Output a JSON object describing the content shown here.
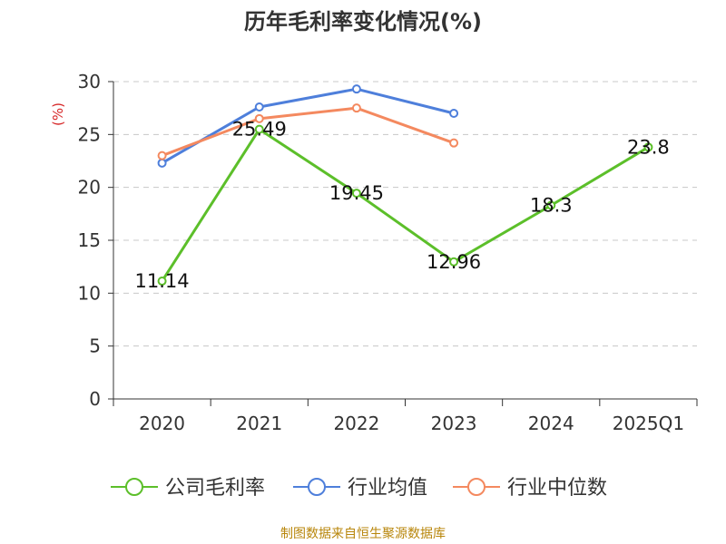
{
  "title": "历年毛利率变化情况(%)",
  "source": "制图数据来自恒生聚源数据库",
  "chart_data": {
    "type": "line",
    "categories": [
      "2020",
      "2021",
      "2022",
      "2023",
      "2024",
      "2025Q1"
    ],
    "ylabel": "(%)",
    "ylim": [
      0,
      30
    ],
    "yticks": [
      0,
      5,
      10,
      15,
      20,
      25,
      30
    ],
    "grid": true,
    "legend_position": "bottom",
    "series": [
      {
        "name": "公司毛利率",
        "color": "#5cbf2a",
        "values": [
          11.14,
          25.49,
          19.45,
          12.96,
          18.3,
          23.8
        ],
        "labels": [
          "11.14",
          "25.49",
          "19.45",
          "12.96",
          "18.3",
          "23.8"
        ]
      },
      {
        "name": "行业均值",
        "color": "#4e7fdb",
        "values": [
          22.3,
          27.6,
          29.3,
          27.0,
          null,
          null
        ]
      },
      {
        "name": "行业中位数",
        "color": "#f4895f",
        "values": [
          23.0,
          26.5,
          27.5,
          24.2,
          null,
          null
        ]
      }
    ]
  }
}
